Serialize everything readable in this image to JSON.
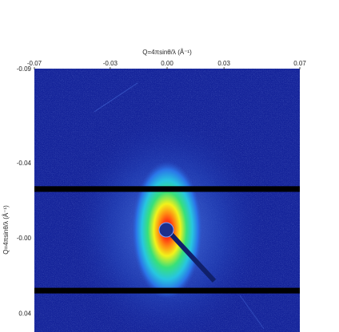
{
  "chart_data": {
    "type": "heatmap",
    "title": "",
    "xlabel": "Q=4πsinθ/λ (Å⁻¹)",
    "ylabel": "Q=4πsinθ/λ (Å⁻¹)",
    "x_ticks": [
      "-0.07",
      "-0.03",
      "0.00",
      "0.03",
      "0.07"
    ],
    "x_tick_values": [
      -0.07,
      -0.03,
      0.0,
      0.03,
      0.07
    ],
    "y_ticks": [
      "-0.09",
      "-0.04",
      "-0.00",
      "0.04"
    ],
    "y_tick_values": [
      -0.09,
      -0.04,
      0.0,
      0.04
    ],
    "xlim": [
      -0.07,
      0.07
    ],
    "ylim": [
      -0.09,
      0.05
    ],
    "colormap": [
      "#0a1a8c",
      "#1e5fd8",
      "#27c6e0",
      "#37e07a",
      "#f2f21a",
      "#ff7a12",
      "#d80f0f"
    ],
    "beam_center": [
      0.0,
      0.0
    ],
    "detector_gaps_y": [
      [
        -0.0275,
        -0.0245
      ],
      [
        0.0265,
        0.0295
      ]
    ]
  }
}
